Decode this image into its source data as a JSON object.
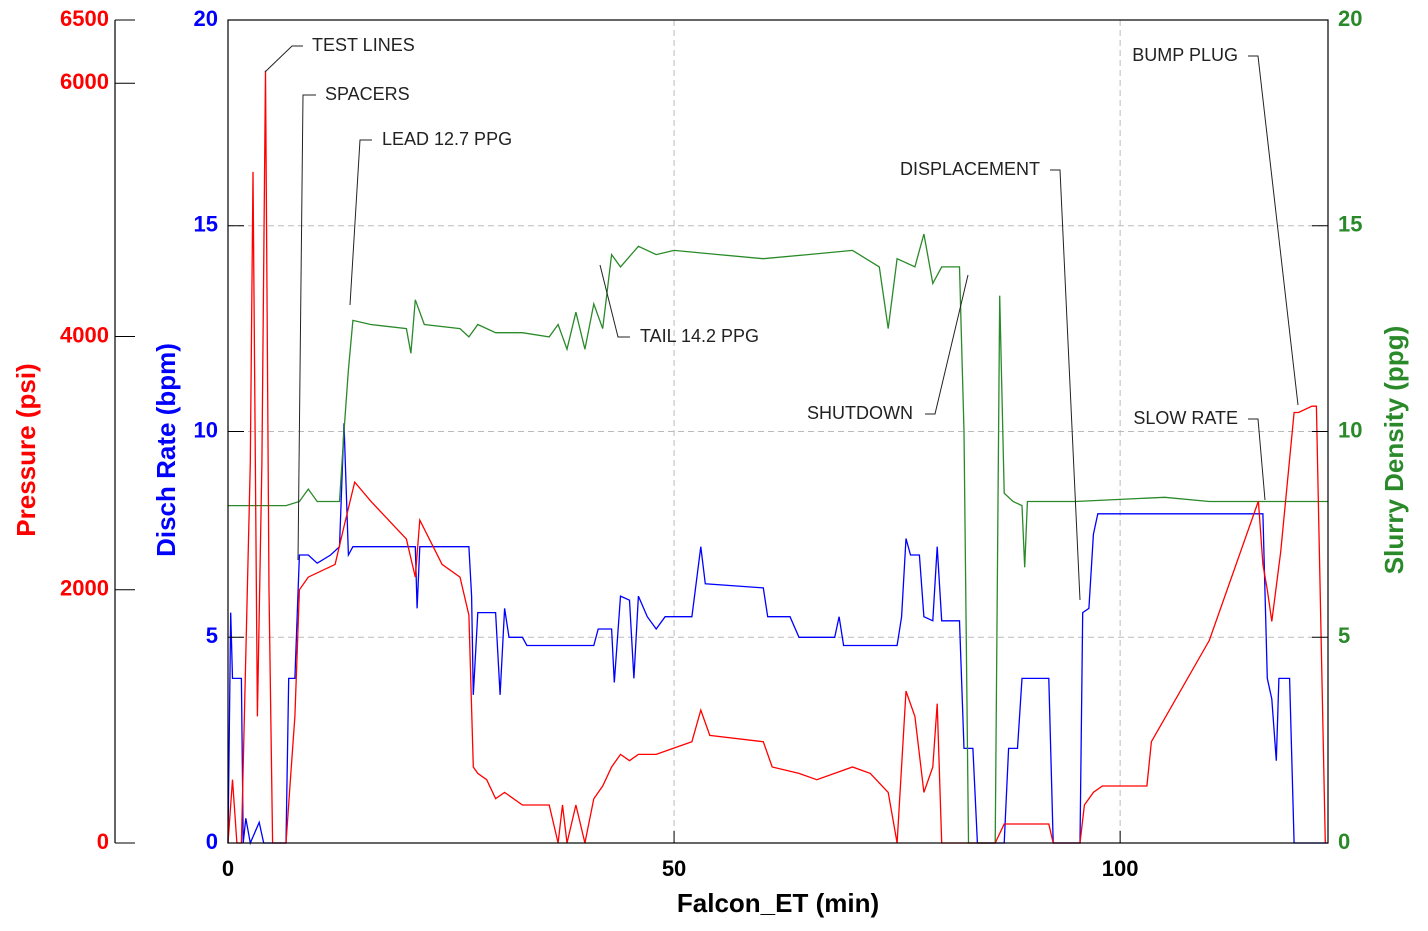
{
  "chart_data": {
    "type": "line",
    "x_label": "Falcon_ET (min)",
    "y_label": "Disch Rate (bpm)",
    "y2_label": "Slurry Density (ppg)",
    "y3_label": "Pressure (psi)",
    "xlim": [
      0,
      123.3
    ],
    "xticks": [
      0,
      50,
      100
    ],
    "ylim": [
      0,
      20
    ],
    "yticks": [
      0,
      5,
      10,
      15,
      20
    ],
    "y2lim": [
      0,
      20
    ],
    "y2ticks": [
      0,
      5,
      10,
      15,
      20
    ],
    "y3lim": [
      0,
      6500
    ],
    "y3ticks": [
      0,
      2000,
      4000,
      6000,
      6500
    ],
    "grid": true,
    "annotations": [
      "TEST LINES",
      "SPACERS",
      "LEAD 12.7 PPG",
      "TAIL 14.2 PPG",
      "SHUTDOWN",
      "DISPLACEMENT",
      "SLOW RATE",
      "BUMP PLUG"
    ],
    "series": [
      {
        "name": "Disch Rate",
        "color": "#0000ff",
        "axis": "y",
        "x": [
          0,
          0.3,
          0.5,
          1.5,
          1.7,
          2,
          2.5,
          3.5,
          4,
          6.5,
          6.8,
          7.5,
          8,
          9,
          10,
          11.5,
          12.5,
          13,
          13.5,
          14,
          21,
          21.2,
          21.5,
          27,
          27.3,
          27.5,
          28,
          30,
          30.5,
          31,
          31.5,
          33,
          33.5,
          41,
          41.5,
          43,
          43.3,
          44,
          45,
          45.5,
          46,
          47,
          48,
          49,
          52,
          53,
          53.5,
          60,
          60.5,
          63,
          64,
          68,
          68.5,
          69,
          75,
          75.5,
          76,
          76.5,
          77.5,
          78,
          79,
          79.5,
          80,
          82,
          82.5,
          83.5,
          84,
          87,
          87.5,
          88.5,
          89,
          92,
          92.5,
          95.5,
          95.8,
          96.5,
          97,
          97.5,
          116,
          116.5,
          117,
          117.5,
          117.8,
          119,
          119.5,
          123.3
        ],
        "values": [
          0,
          5.6,
          4,
          4,
          0,
          0.6,
          0,
          0.5,
          0,
          0,
          4,
          4,
          7,
          7,
          6.8,
          7,
          7.2,
          10.2,
          7,
          7.2,
          7.2,
          5.7,
          7.2,
          7.2,
          6,
          3.6,
          5.6,
          5.6,
          3.6,
          5.7,
          5,
          5,
          4.8,
          4.8,
          5.2,
          5.2,
          3.9,
          6,
          5.9,
          4,
          6,
          5.5,
          5.2,
          5.5,
          5.5,
          7.2,
          6.3,
          6.2,
          5.5,
          5.5,
          5,
          5,
          5.5,
          4.8,
          4.8,
          5.5,
          7.4,
          7,
          7,
          5.5,
          5.4,
          7.2,
          5.4,
          5.4,
          2.3,
          2.3,
          0,
          0,
          2.3,
          2.3,
          4,
          4,
          0,
          0,
          5.6,
          5.7,
          7.5,
          8,
          8,
          4,
          3.5,
          2,
          4,
          4,
          0,
          0
        ]
      },
      {
        "name": "Slurry Density",
        "color": "#2a8a2a",
        "axis": "y2",
        "x": [
          0,
          6.5,
          8,
          9,
          10,
          12.5,
          13,
          13.5,
          14,
          16,
          20,
          20.5,
          21,
          22,
          26,
          27,
          28,
          30,
          33,
          36,
          37,
          38,
          39,
          40,
          41,
          42,
          43,
          44,
          46,
          48,
          50,
          55,
          60,
          65,
          70,
          73,
          74,
          75,
          77,
          78,
          79,
          80,
          82,
          82.5,
          83,
          86,
          86.5,
          87,
          88,
          89,
          89.3,
          89.6,
          95,
          105,
          110,
          123.3
        ],
        "values": [
          8.2,
          8.2,
          8.3,
          8.6,
          8.3,
          8.3,
          10,
          11.5,
          12.7,
          12.6,
          12.5,
          11.9,
          13.2,
          12.6,
          12.5,
          12.3,
          12.6,
          12.4,
          12.4,
          12.3,
          12.6,
          12,
          12.9,
          12,
          13.1,
          12.5,
          14.3,
          14,
          14.5,
          14.3,
          14.4,
          14.3,
          14.2,
          14.3,
          14.4,
          14,
          12.5,
          14.2,
          14,
          14.8,
          13.6,
          14,
          14,
          10,
          0,
          0,
          13.3,
          8.5,
          8.3,
          8.2,
          6.7,
          8.3,
          8.3,
          8.4,
          8.3,
          8.3
        ]
      },
      {
        "name": "Pressure",
        "color": "#ff0000",
        "axis": "y3",
        "x": [
          0,
          0.5,
          1,
          1.5,
          2.5,
          2.8,
          3.3,
          3.8,
          4.2,
          4.6,
          5,
          6.5,
          7,
          7.5,
          8,
          9,
          12,
          13,
          14.2,
          16,
          20,
          21,
          21.5,
          24,
          26,
          27,
          27.5,
          28,
          29,
          30,
          31,
          33,
          36,
          37,
          37.5,
          38,
          39,
          40,
          41,
          42,
          43,
          44,
          45,
          46,
          48,
          50,
          52,
          53,
          54,
          60,
          61,
          64,
          66,
          70,
          72,
          74,
          75,
          76,
          77,
          78,
          79,
          79.5,
          80,
          81,
          83,
          86,
          87,
          92,
          92.5,
          95.5,
          96,
          97,
          98,
          103,
          103.5,
          110,
          115.5,
          116,
          116.5,
          117,
          118,
          119.5,
          120,
          121.5,
          122,
          123
        ],
        "values": [
          0,
          500,
          0,
          0,
          3000,
          5300,
          1000,
          3000,
          6100,
          2000,
          0,
          0,
          500,
          1000,
          2000,
          2100,
          2200,
          2500,
          2850,
          2700,
          2400,
          2100,
          2550,
          2200,
          2100,
          1800,
          600,
          550,
          500,
          350,
          400,
          300,
          300,
          0,
          300,
          0,
          300,
          0,
          350,
          450,
          600,
          700,
          650,
          700,
          700,
          750,
          800,
          1050,
          850,
          800,
          600,
          550,
          500,
          600,
          550,
          400,
          0,
          1200,
          1000,
          400,
          600,
          1100,
          0,
          0,
          0,
          0,
          150,
          150,
          0,
          0,
          300,
          400,
          450,
          450,
          800,
          1600,
          2700,
          2200,
          2000,
          1750,
          2300,
          3400,
          3400,
          3450,
          3450,
          0
        ]
      }
    ]
  }
}
